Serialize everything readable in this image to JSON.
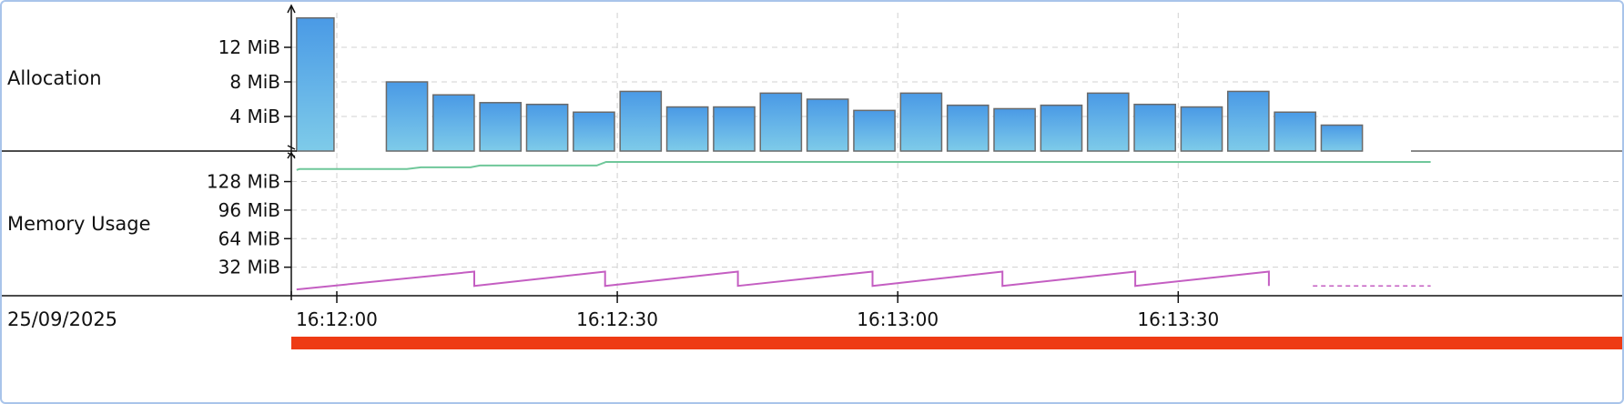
{
  "date": "25/09/2025",
  "colors": {
    "bar_top": "#4a9ae6",
    "bar_bottom": "#7ecbe9",
    "bar_stroke": "#6a6a6a",
    "green_line": "#6fc79a",
    "magenta_line": "#c45ec2",
    "grid": "#d0d0d0",
    "range_bar": "#ee3b14",
    "frame": "#a9c4ea"
  },
  "x_axis": {
    "ticks": [
      {
        "t": 0,
        "label": "16:12:00"
      },
      {
        "t": 30,
        "label": "16:12:30"
      },
      {
        "t": 60,
        "label": "16:13:00"
      },
      {
        "t": 90,
        "label": "16:13:30"
      }
    ],
    "range_seconds": [
      -4.3,
      117
    ]
  },
  "chart_data": [
    {
      "type": "bar",
      "label": "Allocation",
      "unit": "MiB",
      "y_ticks": [
        {
          "value": 4,
          "label": "4 MiB"
        },
        {
          "value": 8,
          "label": "8 MiB"
        },
        {
          "value": 12,
          "label": "12 MiB"
        }
      ],
      "ylim": [
        0,
        16
      ],
      "bars": [
        {
          "t_start": -4.3,
          "t_end": -0.3,
          "value": 15.4
        },
        {
          "t_start": 5.3,
          "t_end": 9.7,
          "value": 8.0
        },
        {
          "t_start": 10.3,
          "t_end": 14.7,
          "value": 6.5
        },
        {
          "t_start": 15.3,
          "t_end": 19.7,
          "value": 5.6
        },
        {
          "t_start": 20.3,
          "t_end": 24.7,
          "value": 5.4
        },
        {
          "t_start": 25.3,
          "t_end": 29.7,
          "value": 4.5
        },
        {
          "t_start": 30.3,
          "t_end": 34.7,
          "value": 6.9
        },
        {
          "t_start": 35.3,
          "t_end": 39.7,
          "value": 5.1
        },
        {
          "t_start": 40.3,
          "t_end": 44.7,
          "value": 5.1
        },
        {
          "t_start": 45.3,
          "t_end": 49.7,
          "value": 6.7
        },
        {
          "t_start": 50.3,
          "t_end": 54.7,
          "value": 6.0
        },
        {
          "t_start": 55.3,
          "t_end": 59.7,
          "value": 4.7
        },
        {
          "t_start": 60.3,
          "t_end": 64.7,
          "value": 6.7
        },
        {
          "t_start": 65.3,
          "t_end": 69.7,
          "value": 5.3
        },
        {
          "t_start": 70.3,
          "t_end": 74.7,
          "value": 4.9
        },
        {
          "t_start": 75.3,
          "t_end": 79.7,
          "value": 5.3
        },
        {
          "t_start": 80.3,
          "t_end": 84.7,
          "value": 6.7
        },
        {
          "t_start": 85.3,
          "t_end": 89.7,
          "value": 5.4
        },
        {
          "t_start": 90.3,
          "t_end": 94.7,
          "value": 5.1
        },
        {
          "t_start": 95.3,
          "t_end": 99.7,
          "value": 6.9
        },
        {
          "t_start": 100.3,
          "t_end": 104.7,
          "value": 4.5
        },
        {
          "t_start": 105.3,
          "t_end": 109.7,
          "value": 3.0
        }
      ]
    },
    {
      "type": "line",
      "label": "Memory Usage",
      "unit": "MiB",
      "y_ticks": [
        {
          "value": 32,
          "label": "32 MiB"
        },
        {
          "value": 64,
          "label": "64 MiB"
        },
        {
          "value": 96,
          "label": "96 MiB"
        },
        {
          "value": 128,
          "label": "128 MiB"
        }
      ],
      "ylim": [
        0,
        160
      ],
      "series": [
        {
          "color_key": "green_line",
          "dashed_after": null,
          "points": [
            [
              -4.3,
              141
            ],
            [
              -4.0,
              142
            ],
            [
              7.5,
              142
            ],
            [
              9.0,
              144
            ],
            [
              14.3,
              144
            ],
            [
              15.3,
              146
            ],
            [
              27.8,
              146
            ],
            [
              28.8,
              150
            ],
            [
              117,
              150
            ]
          ]
        },
        {
          "color_key": "magenta_line",
          "dashed_after": 104.4,
          "points": [
            [
              -4.3,
              7
            ],
            [
              14.7,
              27
            ],
            [
              14.7,
              11
            ],
            [
              28.7,
              27
            ],
            [
              28.7,
              11
            ],
            [
              42.9,
              27
            ],
            [
              42.9,
              11
            ],
            [
              57.3,
              27
            ],
            [
              57.3,
              11
            ],
            [
              71.2,
              27
            ],
            [
              71.2,
              11
            ],
            [
              85.4,
              27
            ],
            [
              85.4,
              11
            ],
            [
              99.7,
              27
            ],
            [
              99.7,
              11
            ],
            [
              117,
              11
            ]
          ]
        }
      ]
    }
  ]
}
